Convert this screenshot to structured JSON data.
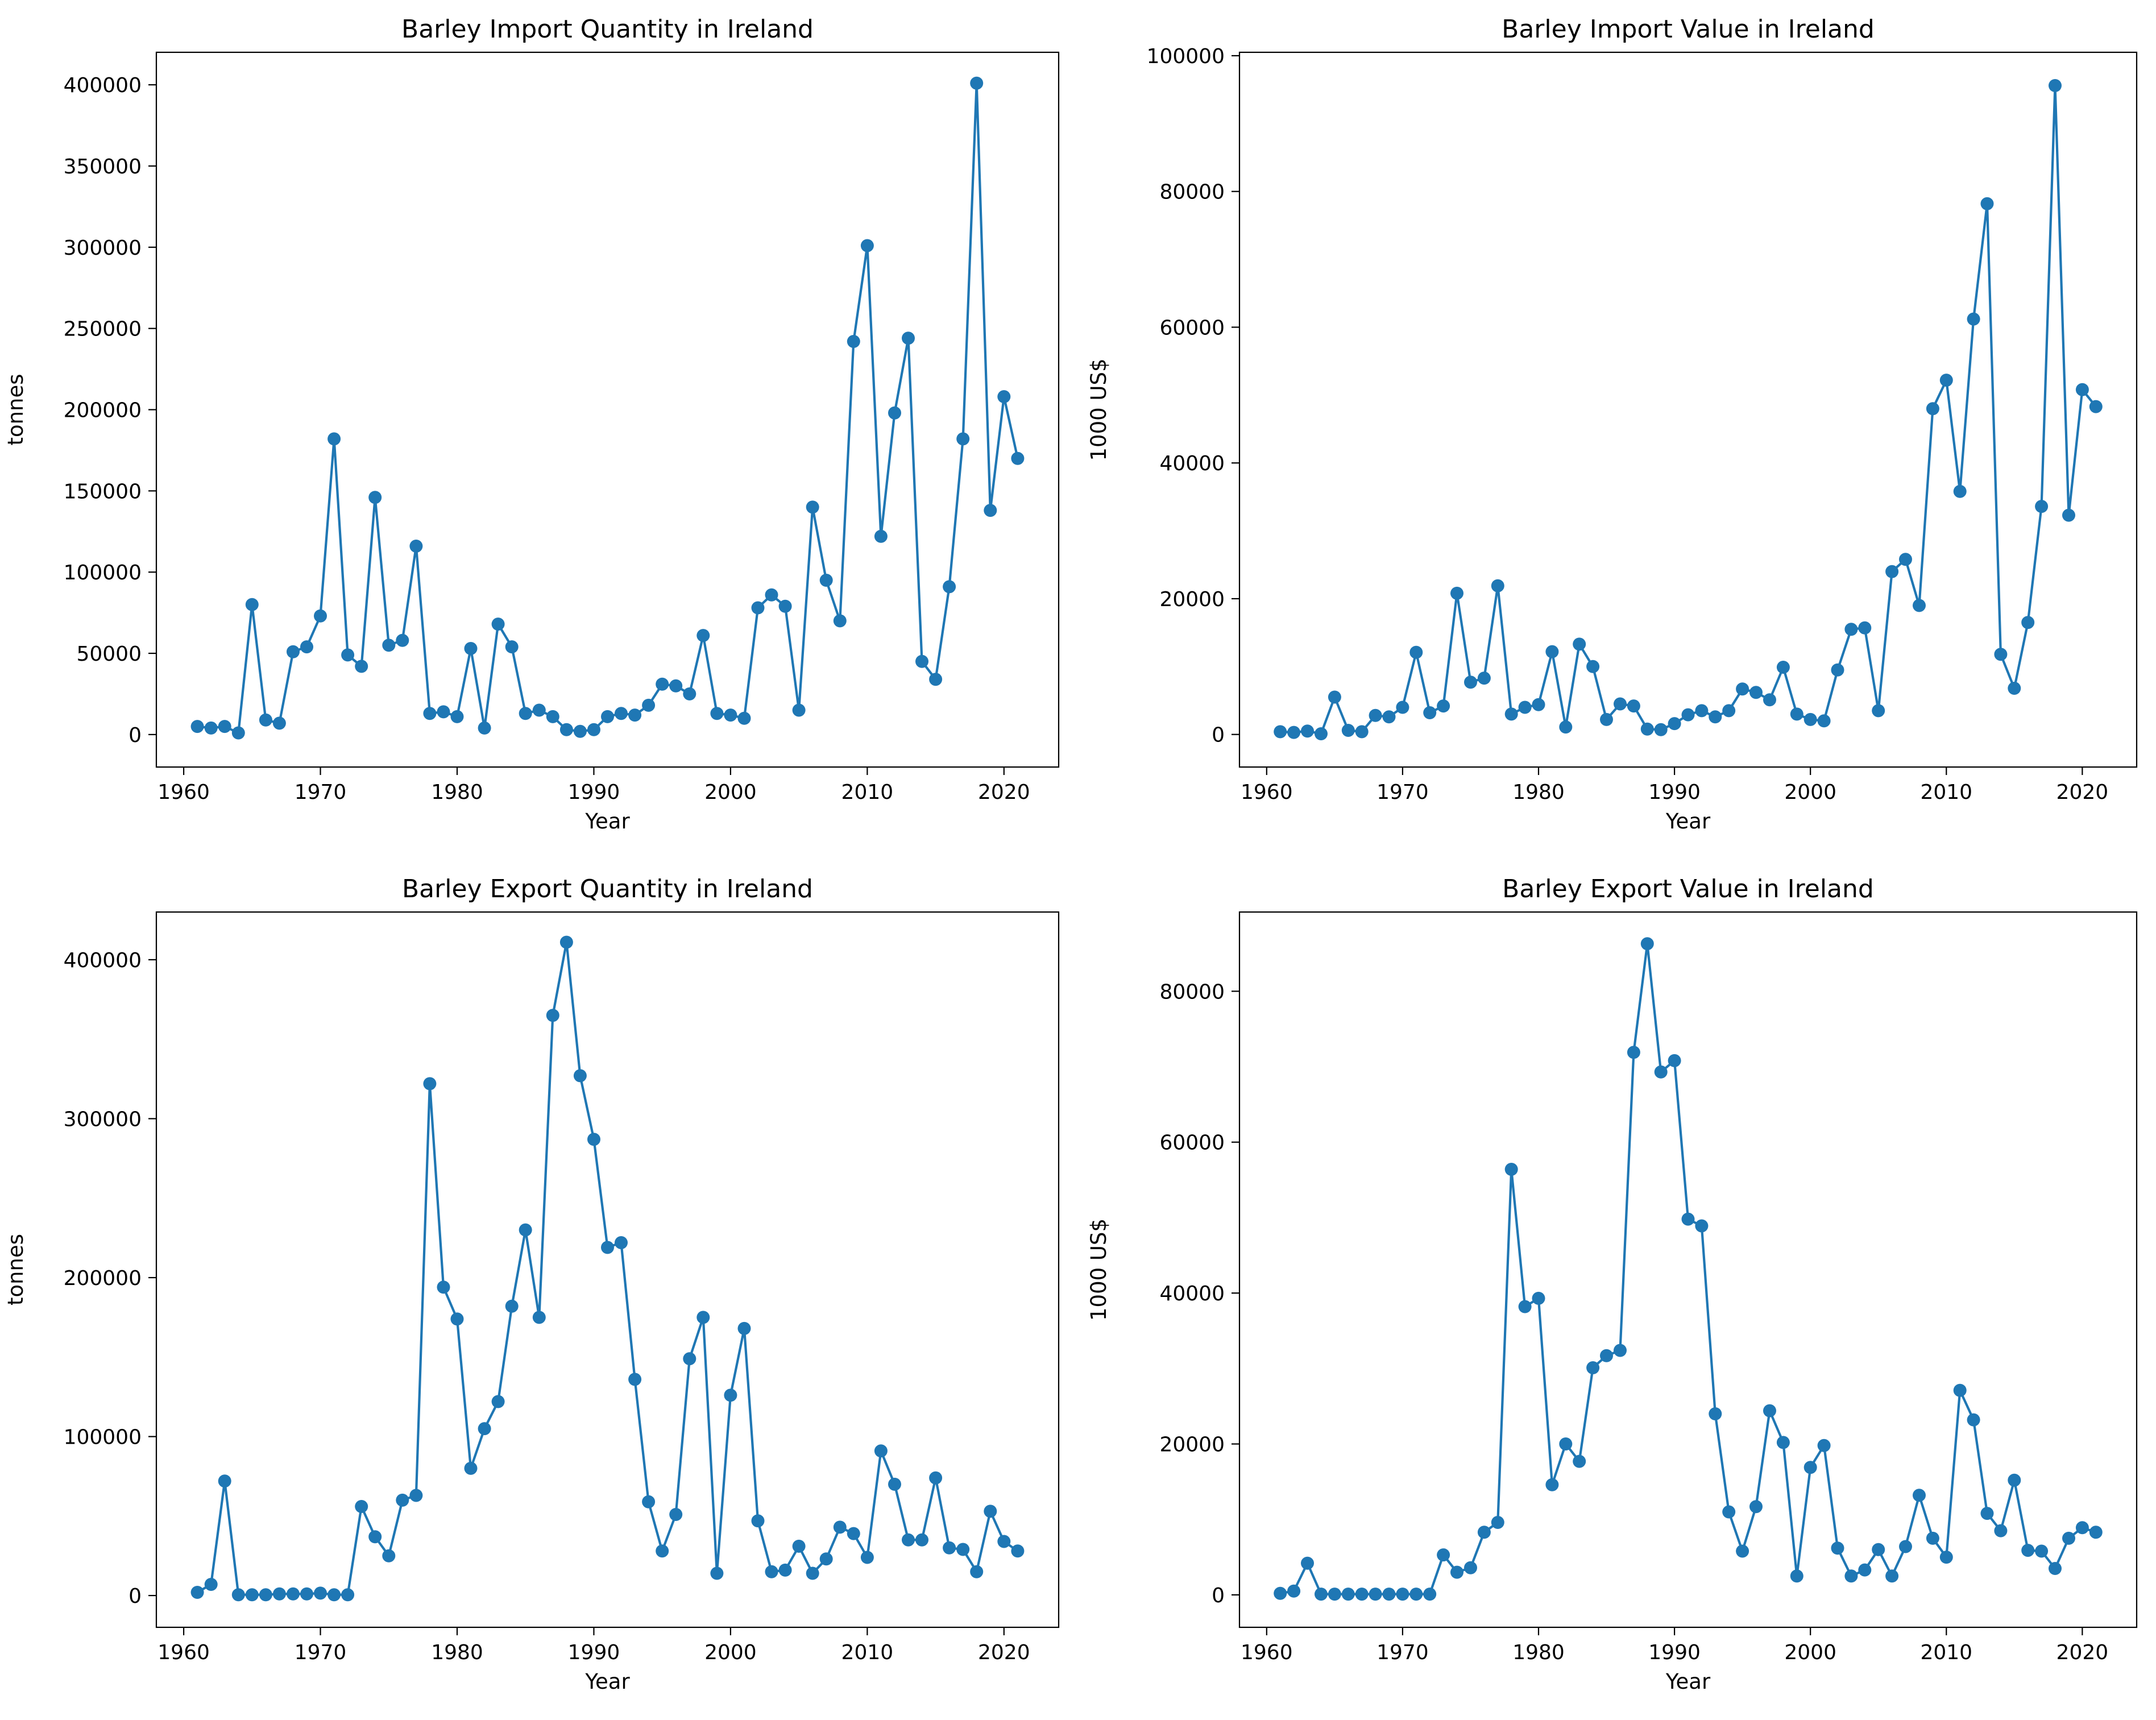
{
  "figure": {
    "colors": {
      "line": "#1f77b4",
      "axes": "#000000",
      "background": "#ffffff"
    }
  },
  "chart_data": [
    {
      "id": "import-quantity",
      "type": "line",
      "title": "Barley Import Quantity in Ireland",
      "xlabel": "Year",
      "ylabel": "tonnes",
      "xlim": [
        1958,
        2024
      ],
      "ylim": [
        -20000,
        420000
      ],
      "xticks": [
        1960,
        1970,
        1980,
        1990,
        2000,
        2010,
        2020
      ],
      "yticks": [
        0,
        50000,
        100000,
        150000,
        200000,
        250000,
        300000,
        350000,
        400000
      ],
      "grid": false,
      "marker": "circle",
      "series": [
        {
          "x": [
            1961,
            1962,
            1963,
            1964,
            1965,
            1966,
            1967,
            1968,
            1969,
            1970,
            1971,
            1972,
            1973,
            1974,
            1975,
            1976,
            1977,
            1978,
            1979,
            1980,
            1981,
            1982,
            1983,
            1984,
            1985,
            1986,
            1987,
            1988,
            1989,
            1990,
            1991,
            1992,
            1993,
            1994,
            1995,
            1996,
            1997,
            1998,
            1999,
            2000,
            2001,
            2002,
            2003,
            2004,
            2005,
            2006,
            2007,
            2008,
            2009,
            2010,
            2011,
            2012,
            2013,
            2014,
            2015,
            2016,
            2017,
            2018,
            2019,
            2020,
            2021
          ],
          "values": [
            5000,
            4000,
            5000,
            1000,
            80000,
            9000,
            7000,
            51000,
            54000,
            73000,
            182000,
            49000,
            42000,
            146000,
            55000,
            58000,
            116000,
            13000,
            14000,
            11000,
            53000,
            4000,
            68000,
            54000,
            13000,
            15000,
            11000,
            3000,
            2000,
            3000,
            11000,
            13000,
            12000,
            18000,
            31000,
            30000,
            25000,
            61000,
            13000,
            12000,
            10000,
            78000,
            86000,
            79000,
            15000,
            140000,
            95000,
            70000,
            242000,
            301000,
            122000,
            198000,
            244000,
            45000,
            34000,
            91000,
            182000,
            401000,
            138000,
            208000,
            170000
          ]
        }
      ]
    },
    {
      "id": "import-value",
      "type": "line",
      "title": "Barley Import Value in Ireland",
      "xlabel": "Year",
      "ylabel": "1000 US$",
      "xlim": [
        1958,
        2024
      ],
      "ylim": [
        -4800,
        100500
      ],
      "xticks": [
        1960,
        1970,
        1980,
        1990,
        2000,
        2010,
        2020
      ],
      "yticks": [
        0,
        20000,
        40000,
        60000,
        80000,
        100000
      ],
      "grid": false,
      "marker": "circle",
      "series": [
        {
          "x": [
            1961,
            1962,
            1963,
            1964,
            1965,
            1966,
            1967,
            1968,
            1969,
            1970,
            1971,
            1972,
            1973,
            1974,
            1975,
            1976,
            1977,
            1978,
            1979,
            1980,
            1981,
            1982,
            1983,
            1984,
            1985,
            1986,
            1987,
            1988,
            1989,
            1990,
            1991,
            1992,
            1993,
            1994,
            1995,
            1996,
            1997,
            1998,
            1999,
            2000,
            2001,
            2002,
            2003,
            2004,
            2005,
            2006,
            2007,
            2008,
            2009,
            2010,
            2011,
            2012,
            2013,
            2014,
            2015,
            2016,
            2017,
            2018,
            2019,
            2020,
            2021
          ],
          "values": [
            400,
            300,
            500,
            100,
            5500,
            600,
            400,
            2800,
            2600,
            4000,
            12100,
            3200,
            4200,
            20800,
            7700,
            8300,
            21900,
            3000,
            4000,
            4400,
            12200,
            1100,
            13300,
            10000,
            2200,
            4500,
            4200,
            800,
            700,
            1600,
            2900,
            3500,
            2600,
            3500,
            6700,
            6200,
            5100,
            9900,
            3000,
            2200,
            2000,
            9500,
            15500,
            15700,
            3500,
            24000,
            25800,
            19000,
            48000,
            52200,
            35800,
            61200,
            78200,
            11800,
            6800,
            16500,
            33600,
            95600,
            32300,
            50800,
            48300
          ]
        }
      ]
    },
    {
      "id": "export-quantity",
      "type": "line",
      "title": "Barley Export Quantity in Ireland",
      "xlabel": "Year",
      "ylabel": "tonnes",
      "xlim": [
        1958,
        2024
      ],
      "ylim": [
        -20000,
        430000
      ],
      "xticks": [
        1960,
        1970,
        1980,
        1990,
        2000,
        2010,
        2020
      ],
      "yticks": [
        0,
        100000,
        200000,
        300000,
        400000
      ],
      "grid": false,
      "marker": "circle",
      "series": [
        {
          "x": [
            1961,
            1962,
            1963,
            1964,
            1965,
            1966,
            1967,
            1968,
            1969,
            1970,
            1971,
            1972,
            1973,
            1974,
            1975,
            1976,
            1977,
            1978,
            1979,
            1980,
            1981,
            1982,
            1983,
            1984,
            1985,
            1986,
            1987,
            1988,
            1989,
            1990,
            1991,
            1992,
            1993,
            1994,
            1995,
            1996,
            1997,
            1998,
            1999,
            2000,
            2001,
            2002,
            2003,
            2004,
            2005,
            2006,
            2007,
            2008,
            2009,
            2010,
            2011,
            2012,
            2013,
            2014,
            2015,
            2016,
            2017,
            2018,
            2019,
            2020,
            2021
          ],
          "values": [
            2000,
            7000,
            72000,
            500,
            500,
            500,
            1000,
            1000,
            1000,
            1500,
            500,
            500,
            56000,
            37000,
            25000,
            60000,
            63000,
            322000,
            194000,
            174000,
            80000,
            105000,
            122000,
            182000,
            230000,
            175000,
            365000,
            411000,
            327000,
            287000,
            219000,
            222000,
            136000,
            59000,
            28000,
            51000,
            149000,
            175000,
            14000,
            126000,
            168000,
            47000,
            15000,
            16000,
            31000,
            14000,
            23000,
            43000,
            39000,
            24000,
            91000,
            70000,
            35000,
            35000,
            74000,
            30000,
            29000,
            15000,
            53000,
            34000,
            28000
          ]
        }
      ]
    },
    {
      "id": "export-value",
      "type": "line",
      "title": "Barley Export Value in Ireland",
      "xlabel": "Year",
      "ylabel": "1000 US$",
      "xlim": [
        1958,
        2024
      ],
      "ylim": [
        -4300,
        90500
      ],
      "xticks": [
        1960,
        1970,
        1980,
        1990,
        2000,
        2010,
        2020
      ],
      "yticks": [
        0,
        20000,
        40000,
        60000,
        80000
      ],
      "grid": false,
      "marker": "circle",
      "series": [
        {
          "x": [
            1961,
            1962,
            1963,
            1964,
            1965,
            1966,
            1967,
            1968,
            1969,
            1970,
            1971,
            1972,
            1973,
            1974,
            1975,
            1976,
            1977,
            1978,
            1979,
            1980,
            1981,
            1982,
            1983,
            1984,
            1985,
            1986,
            1987,
            1988,
            1989,
            1990,
            1991,
            1992,
            1993,
            1994,
            1995,
            1996,
            1997,
            1998,
            1999,
            2000,
            2001,
            2002,
            2003,
            2004,
            2005,
            2006,
            2007,
            2008,
            2009,
            2010,
            2011,
            2012,
            2013,
            2014,
            2015,
            2016,
            2017,
            2018,
            2019,
            2020,
            2021
          ],
          "values": [
            200,
            500,
            4200,
            100,
            100,
            100,
            100,
            100,
            100,
            100,
            100,
            100,
            5300,
            3000,
            3600,
            8300,
            9600,
            56400,
            38200,
            39300,
            14600,
            20000,
            17700,
            30100,
            31700,
            32400,
            71900,
            86300,
            69300,
            70800,
            49800,
            48900,
            24000,
            11000,
            5800,
            11700,
            24400,
            20200,
            2500,
            16900,
            19800,
            6200,
            2500,
            3300,
            6000,
            2500,
            6400,
            13200,
            7500,
            5000,
            27100,
            23200,
            10800,
            8500,
            15200,
            5900,
            5800,
            3500,
            7500,
            8900,
            8300
          ]
        }
      ]
    }
  ]
}
